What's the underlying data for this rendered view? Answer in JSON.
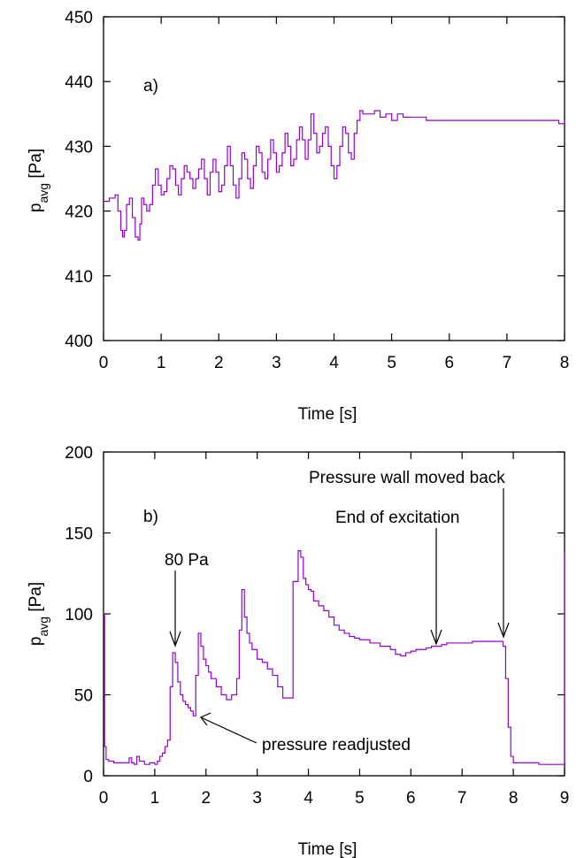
{
  "chart_data": [
    {
      "type": "line",
      "panel_label": "a)",
      "xlabel": "Time [s]",
      "ylabel": {
        "base": "p",
        "sub": "avg",
        "rest": " [Pa]"
      },
      "xlim": [
        0,
        8
      ],
      "ylim": [
        400,
        450
      ],
      "xticks": [
        0,
        1,
        2,
        3,
        4,
        5,
        6,
        7,
        8
      ],
      "yticks": [
        400,
        410,
        420,
        430,
        440,
        450
      ],
      "grid": false,
      "color": "#9400d3",
      "series": [
        {
          "x": [
            0.0,
            0.1,
            0.2,
            0.25,
            0.3,
            0.33,
            0.36,
            0.4,
            0.45,
            0.5,
            0.55,
            0.6,
            0.63,
            0.66,
            0.7,
            0.75,
            0.8,
            0.85,
            0.9,
            0.95,
            1.0,
            1.05,
            1.1,
            1.15,
            1.2,
            1.25,
            1.3,
            1.35,
            1.4,
            1.45,
            1.5,
            1.55,
            1.6,
            1.65,
            1.7,
            1.75,
            1.8,
            1.85,
            1.9,
            1.95,
            2.0,
            2.05,
            2.1,
            2.15,
            2.2,
            2.25,
            2.3,
            2.35,
            2.4,
            2.45,
            2.5,
            2.55,
            2.6,
            2.65,
            2.7,
            2.75,
            2.8,
            2.85,
            2.9,
            2.95,
            3.0,
            3.05,
            3.1,
            3.15,
            3.2,
            3.25,
            3.3,
            3.35,
            3.4,
            3.45,
            3.5,
            3.55,
            3.6,
            3.65,
            3.7,
            3.75,
            3.8,
            3.85,
            3.9,
            3.95,
            4.0,
            4.05,
            4.1,
            4.15,
            4.2,
            4.25,
            4.3,
            4.35,
            4.4,
            4.45,
            4.5,
            4.6,
            4.7,
            4.8,
            4.9,
            5.0,
            5.1,
            5.2,
            5.3,
            5.4,
            5.5,
            5.6,
            5.8,
            6.0,
            6.5,
            7.0,
            7.5,
            7.9,
            7.95,
            8.0
          ],
          "y": [
            421.5,
            422,
            422.5,
            420,
            417,
            416,
            417,
            421,
            422,
            419,
            416,
            415.5,
            418,
            422,
            421,
            420,
            421,
            424,
            426.5,
            424,
            422.5,
            423,
            425,
            427,
            426.5,
            424,
            422.5,
            425,
            427,
            426,
            425,
            423.5,
            425,
            426.5,
            428,
            425,
            422.5,
            426,
            428,
            426,
            423,
            424,
            427,
            430,
            427,
            424,
            422,
            425,
            429,
            428,
            425,
            423.5,
            427,
            430,
            429,
            426,
            425,
            428,
            431,
            429,
            426,
            427,
            429,
            432,
            430,
            427,
            428,
            431,
            433,
            431,
            428,
            431,
            435,
            432,
            429,
            430,
            432,
            433,
            430,
            427,
            425,
            427,
            430,
            433,
            432,
            429,
            428,
            432,
            434,
            435.5,
            435,
            435,
            435.5,
            434.5,
            435,
            434,
            435,
            434.5,
            434.5,
            434.5,
            434.5,
            434,
            434,
            434,
            434,
            434,
            434,
            433.5,
            433.5,
            434
          ]
        }
      ]
    },
    {
      "type": "line",
      "panel_label": "b)",
      "xlabel": "Time [s]",
      "ylabel": {
        "base": "p",
        "sub": "avg",
        "rest": " [Pa]"
      },
      "xlim": [
        0,
        9
      ],
      "ylim": [
        0,
        200
      ],
      "xticks": [
        0,
        1,
        2,
        3,
        4,
        5,
        6,
        7,
        8,
        9
      ],
      "yticks": [
        0,
        50,
        100,
        150,
        200
      ],
      "grid": false,
      "color": "#9400d3",
      "annotations": [
        {
          "text": "80 Pa",
          "x": 1.35,
          "y": 76
        },
        {
          "text": "pressure readjusted",
          "x": 1.8,
          "y": 37
        },
        {
          "text": "End of excitation",
          "x": 6.5,
          "y": 80
        },
        {
          "text": "Pressure wall moved back",
          "x": 7.8,
          "y": 83
        }
      ],
      "series": [
        {
          "x": [
            0.0,
            0.02,
            0.05,
            0.1,
            0.2,
            0.3,
            0.4,
            0.5,
            0.55,
            0.6,
            0.65,
            0.7,
            0.8,
            0.9,
            1.0,
            1.05,
            1.1,
            1.15,
            1.2,
            1.25,
            1.3,
            1.35,
            1.4,
            1.45,
            1.5,
            1.55,
            1.6,
            1.65,
            1.7,
            1.75,
            1.8,
            1.85,
            1.9,
            1.95,
            2.0,
            2.05,
            2.1,
            2.2,
            2.3,
            2.4,
            2.5,
            2.6,
            2.65,
            2.7,
            2.75,
            2.8,
            2.85,
            2.9,
            3.0,
            3.1,
            3.2,
            3.3,
            3.4,
            3.5,
            3.6,
            3.7,
            3.8,
            3.85,
            3.9,
            3.95,
            4.0,
            4.05,
            4.1,
            4.2,
            4.3,
            4.4,
            4.5,
            4.6,
            4.7,
            4.8,
            4.9,
            5.0,
            5.2,
            5.4,
            5.6,
            5.7,
            5.8,
            5.9,
            6.0,
            6.1,
            6.2,
            6.3,
            6.4,
            6.5,
            6.6,
            6.7,
            6.8,
            7.0,
            7.2,
            7.4,
            7.6,
            7.7,
            7.75,
            7.8,
            7.85,
            7.9,
            7.95,
            8.0,
            8.5,
            8.9,
            8.95,
            9.0
          ],
          "y": [
            100,
            18,
            10,
            9,
            8,
            8,
            8,
            11,
            8,
            7,
            12,
            9,
            7,
            8,
            7,
            9,
            12,
            14,
            18,
            22,
            55,
            76,
            70,
            58,
            50,
            46,
            44,
            42,
            40,
            37,
            62,
            88,
            80,
            72,
            68,
            64,
            60,
            55,
            50,
            47,
            50,
            60,
            90,
            115,
            98,
            88,
            82,
            78,
            72,
            70,
            66,
            62,
            55,
            48,
            48,
            120,
            139,
            135,
            122,
            118,
            115,
            114,
            108,
            105,
            102,
            98,
            93,
            90,
            88,
            86,
            85,
            84,
            82,
            80,
            78,
            75,
            74,
            76,
            77,
            78,
            78,
            79,
            80,
            80,
            81,
            82,
            82,
            82,
            83,
            83,
            83,
            83,
            83,
            80,
            60,
            30,
            12,
            8,
            7,
            7,
            7,
            138
          ]
        }
      ]
    }
  ]
}
